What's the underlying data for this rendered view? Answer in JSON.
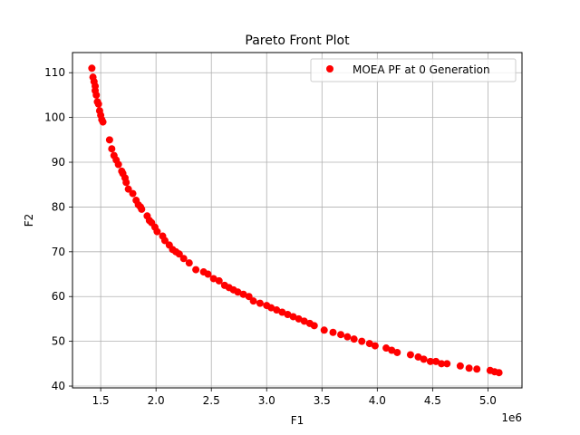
{
  "chart_data": {
    "type": "scatter",
    "title": "Pareto Front Plot",
    "xlabel": "F1",
    "ylabel": "F2",
    "x_offset_label": "1e6",
    "xlim": [
      1.245,
      5.308
    ],
    "ylim": [
      39.6,
      114.5
    ],
    "xticks": [
      1.5,
      2.0,
      2.5,
      3.0,
      3.5,
      4.0,
      4.5,
      5.0
    ],
    "xtick_labels": [
      "1.5",
      "2.0",
      "2.5",
      "3.0",
      "3.5",
      "4.0",
      "4.5",
      "5.0"
    ],
    "yticks": [
      40,
      50,
      60,
      70,
      80,
      90,
      100,
      110
    ],
    "ytick_labels": [
      "40",
      "50",
      "60",
      "70",
      "80",
      "90",
      "100",
      "110"
    ],
    "grid": true,
    "legend_position": "top-right",
    "series": [
      {
        "name": "MOEA PF at 0 Generation",
        "color": "#ff0000",
        "marker": "circle",
        "x": [
          1.42,
          1.43,
          1.44,
          1.45,
          1.45,
          1.46,
          1.47,
          1.48,
          1.49,
          1.5,
          1.51,
          1.52,
          1.58,
          1.6,
          1.62,
          1.64,
          1.66,
          1.69,
          1.7,
          1.72,
          1.73,
          1.75,
          1.79,
          1.82,
          1.84,
          1.86,
          1.87,
          1.92,
          1.94,
          1.96,
          1.99,
          2.01,
          2.06,
          2.08,
          2.12,
          2.15,
          2.18,
          2.21,
          2.25,
          2.3,
          2.36,
          2.43,
          2.47,
          2.52,
          2.57,
          2.62,
          2.66,
          2.7,
          2.74,
          2.79,
          2.84,
          2.88,
          2.94,
          3.0,
          3.04,
          3.09,
          3.14,
          3.19,
          3.24,
          3.29,
          3.34,
          3.39,
          3.43,
          3.52,
          3.6,
          3.67,
          3.73,
          3.79,
          3.86,
          3.93,
          3.98,
          4.08,
          4.13,
          4.18,
          4.3,
          4.37,
          4.42,
          4.48,
          4.53,
          4.58,
          4.63,
          4.75,
          4.83,
          4.9,
          5.02,
          5.06,
          5.1
        ],
        "y": [
          111.0,
          109.0,
          108.0,
          107.0,
          106.0,
          105.0,
          103.5,
          103.0,
          101.5,
          100.5,
          99.5,
          99.0,
          95.0,
          93.0,
          91.5,
          90.5,
          89.5,
          88.0,
          87.5,
          86.5,
          85.5,
          84.0,
          83.0,
          81.5,
          80.5,
          80.0,
          79.5,
          78.0,
          77.0,
          76.5,
          75.5,
          74.5,
          73.5,
          72.5,
          71.5,
          70.5,
          70.0,
          69.5,
          68.5,
          67.5,
          66.0,
          65.5,
          65.0,
          64.0,
          63.5,
          62.5,
          62.0,
          61.5,
          61.0,
          60.5,
          60.0,
          59.0,
          58.5,
          58.0,
          57.5,
          57.0,
          56.5,
          56.0,
          55.5,
          55.0,
          54.5,
          54.0,
          53.5,
          52.5,
          52.0,
          51.5,
          51.0,
          50.5,
          50.0,
          49.5,
          49.0,
          48.5,
          48.0,
          47.5,
          47.0,
          46.5,
          46.0,
          45.5,
          45.5,
          45.0,
          45.0,
          44.5,
          44.0,
          43.8,
          43.5,
          43.2,
          43.0
        ]
      }
    ]
  }
}
